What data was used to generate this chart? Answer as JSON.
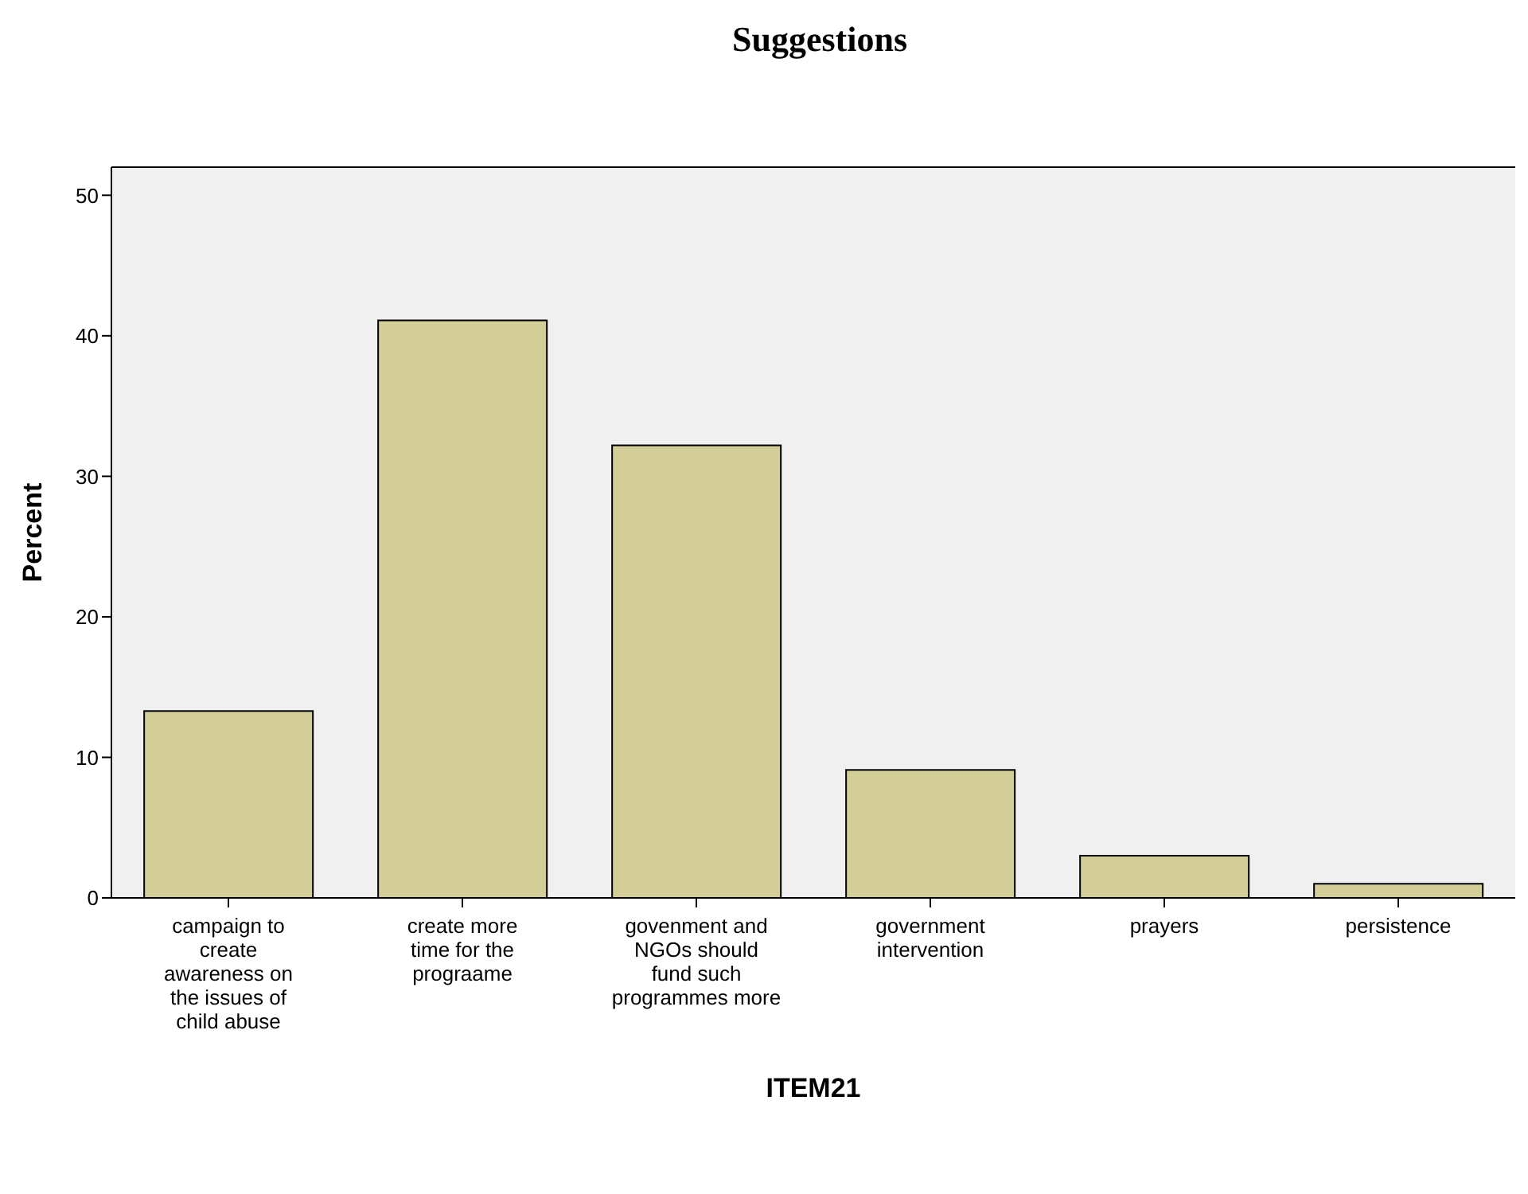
{
  "chart_data": {
    "type": "bar",
    "title": "Suggestions",
    "xlabel": "ITEM21",
    "ylabel": "Percent",
    "categories": [
      "campaign to create awareness on the issues of child abuse",
      "create more time for the prograame",
      "govenment and NGOs should fund such programmes more",
      "government intervention",
      "prayers",
      "persistence"
    ],
    "values": [
      13.3,
      41.1,
      32.2,
      9.1,
      3.0,
      1.0
    ],
    "color": "#d3ce97",
    "ylim": [
      0,
      52
    ],
    "yticks": [
      0,
      10,
      20,
      30,
      40,
      50
    ],
    "grid": false
  }
}
